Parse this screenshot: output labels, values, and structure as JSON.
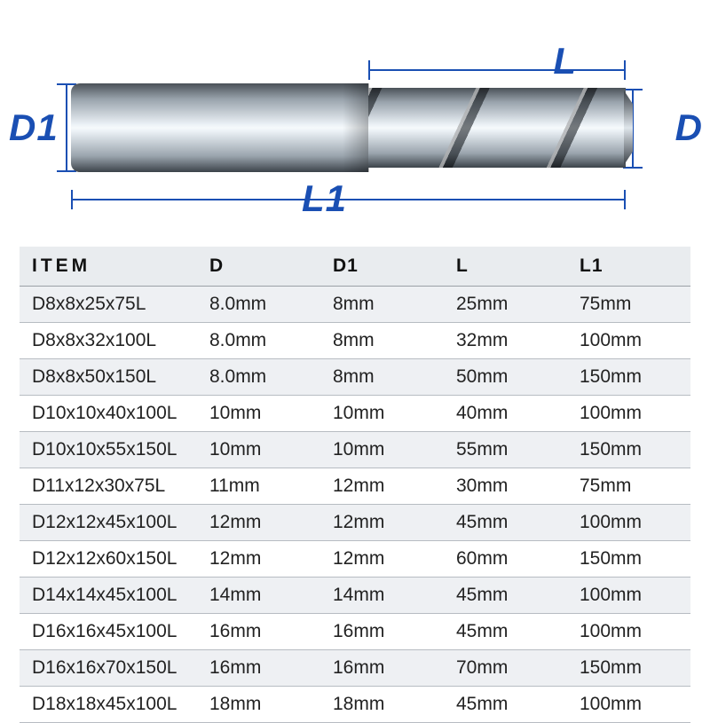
{
  "diagram": {
    "labels": {
      "D1": "D1",
      "D": "D",
      "L": "L",
      "L1": "L1"
    },
    "label_color": "#1a4fb3",
    "label_fontsize": 42,
    "line_color": "#1a4fb3",
    "tool_gradient": [
      "#4a5158",
      "#9aa4ad",
      "#e8eef3",
      "#f6fafc"
    ]
  },
  "table": {
    "header_bg": "#e9ecef",
    "row_alt_bg": "#eef0f3",
    "border_color": "#b7bcc2",
    "fontsize": 21,
    "columns": [
      "ITEM",
      "D",
      "D1",
      "L",
      "L1"
    ],
    "rows": [
      [
        "D8x8x25x75L",
        "8.0mm",
        "8mm",
        "25mm",
        "75mm"
      ],
      [
        "D8x8x32x100L",
        "8.0mm",
        "8mm",
        "32mm",
        "100mm"
      ],
      [
        "D8x8x50x150L",
        "8.0mm",
        "8mm",
        "50mm",
        "150mm"
      ],
      [
        "D10x10x40x100L",
        "10mm",
        "10mm",
        "40mm",
        "100mm"
      ],
      [
        "D10x10x55x150L",
        "10mm",
        "10mm",
        "55mm",
        "150mm"
      ],
      [
        "D11x12x30x75L",
        "11mm",
        "12mm",
        "30mm",
        "75mm"
      ],
      [
        "D12x12x45x100L",
        "12mm",
        "12mm",
        "45mm",
        "100mm"
      ],
      [
        "D12x12x60x150L",
        "12mm",
        "12mm",
        "60mm",
        "150mm"
      ],
      [
        "D14x14x45x100L",
        "14mm",
        "14mm",
        "45mm",
        "100mm"
      ],
      [
        "D16x16x45x100L",
        "16mm",
        "16mm",
        "45mm",
        "100mm"
      ],
      [
        "D16x16x70x150L",
        "16mm",
        "16mm",
        "70mm",
        "150mm"
      ],
      [
        "D18x18x45x100L",
        "18mm",
        "18mm",
        "45mm",
        "100mm"
      ]
    ]
  }
}
